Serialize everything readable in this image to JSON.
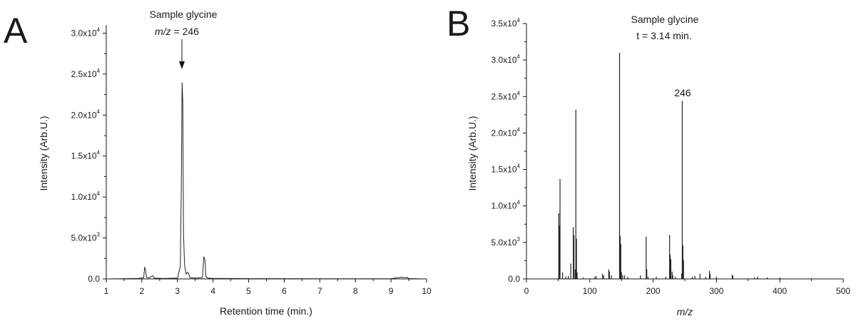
{
  "panels": [
    {
      "letter": "A",
      "title_line1": "Sample glycine",
      "title_line2_italic": "m/z",
      "title_line2_rest": " = 246",
      "ylabel": "Intensity (Arb.U.)",
      "xlabel": "Retention time (min.)",
      "xlabel_italic": false,
      "xticks": [
        1,
        2,
        3,
        4,
        5,
        6,
        7,
        8,
        9,
        10
      ],
      "yticks": [
        {
          "value": 0,
          "mant": "0.0",
          "exp": ""
        },
        {
          "value": 5000,
          "mant": "5.0x10",
          "exp": "3"
        },
        {
          "value": 10000,
          "mant": "1.0x10",
          "exp": "4"
        },
        {
          "value": 15000,
          "mant": "1.5x10",
          "exp": "4"
        },
        {
          "value": 20000,
          "mant": "2.0x10",
          "exp": "4"
        },
        {
          "value": 25000,
          "mant": "2.5x10",
          "exp": "4"
        },
        {
          "value": 30000,
          "mant": "3.0x10",
          "exp": "4"
        }
      ]
    },
    {
      "letter": "B",
      "title_line1": "Sample glycine",
      "title_line2_italic": "",
      "title_line2_rest": "t = 3.14 min.",
      "ylabel": "Intensity (Arb.U.)",
      "xlabel": "m/z",
      "xlabel_italic": true,
      "peak_label": "246",
      "xticks": [
        0,
        100,
        200,
        300,
        400,
        500
      ],
      "yticks": [
        {
          "value": 0,
          "mant": "0.0",
          "exp": ""
        },
        {
          "value": 5000,
          "mant": "5.0x10",
          "exp": "3"
        },
        {
          "value": 10000,
          "mant": "1.0x10",
          "exp": "4"
        },
        {
          "value": 15000,
          "mant": "1.5x10",
          "exp": "4"
        },
        {
          "value": 20000,
          "mant": "2.0x10",
          "exp": "4"
        },
        {
          "value": 25000,
          "mant": "2.5x10",
          "exp": "4"
        },
        {
          "value": 30000,
          "mant": "3.0x10",
          "exp": "4"
        },
        {
          "value": 35000,
          "mant": "3.5x10",
          "exp": "4"
        }
      ]
    }
  ],
  "chart_data": [
    {
      "type": "line",
      "title": "Sample glycine m/z = 246",
      "xlabel": "Retention time (min.)",
      "ylabel": "Intensity (Arb.U.)",
      "xlim": [
        1,
        10
      ],
      "ylim": [
        0,
        31000
      ],
      "grid": false,
      "series": [
        {
          "x": [
            1.0,
            1.9,
            2.05,
            2.08,
            2.1,
            2.13,
            2.2,
            2.3,
            2.32,
            2.35,
            2.6,
            3.0,
            3.08,
            3.11,
            3.13,
            3.15,
            3.17,
            3.2,
            3.24,
            3.28,
            3.31,
            3.35,
            3.5,
            3.7,
            3.74,
            3.77,
            3.8,
            3.85,
            4.0,
            5.0,
            6.0,
            7.0,
            8.0,
            9.0,
            9.3,
            9.4,
            9.45,
            9.5,
            10.0
          ],
          "y": [
            0,
            50,
            150,
            1400,
            1200,
            200,
            100,
            400,
            300,
            100,
            50,
            100,
            1500,
            12000,
            24000,
            21500,
            5500,
            1700,
            600,
            800,
            700,
            150,
            100,
            150,
            2700,
            2400,
            300,
            100,
            60,
            30,
            30,
            20,
            20,
            30,
            200,
            150,
            200,
            40,
            0
          ]
        }
      ],
      "annotations": [
        {
          "text": "Sample glycine m/z = 246",
          "arrow_to_x": 3.13
        }
      ]
    },
    {
      "type": "bar",
      "title": "Sample glycine t = 3.14 min.",
      "xlabel": "m/z",
      "ylabel": "Intensity (Arb.U.)",
      "xlim": [
        0,
        500
      ],
      "ylim": [
        0,
        35000
      ],
      "grid": false,
      "x": [
        51,
        52,
        53,
        57,
        62,
        66,
        70,
        74,
        75,
        77,
        78,
        79,
        80,
        90,
        108,
        110,
        120,
        122,
        130,
        131,
        134,
        147,
        148,
        149,
        150,
        152,
        155,
        160,
        180,
        189,
        190,
        192,
        205,
        220,
        226,
        227,
        228,
        230,
        231,
        235,
        245,
        246,
        247,
        248,
        262,
        266,
        274,
        283,
        289,
        290,
        300,
        325,
        326,
        360,
        365,
        380,
        400
      ],
      "y": [
        9000,
        7300,
        13700,
        900,
        300,
        400,
        2100,
        7100,
        6000,
        1300,
        23200,
        5500,
        900,
        200,
        300,
        400,
        700,
        500,
        1300,
        1000,
        500,
        31000,
        5900,
        4800,
        900,
        500,
        500,
        300,
        500,
        5800,
        1300,
        300,
        300,
        300,
        6000,
        3300,
        2700,
        1000,
        500,
        300,
        700,
        24400,
        4600,
        2600,
        300,
        400,
        700,
        300,
        1100,
        700,
        300,
        600,
        400,
        200,
        300,
        200,
        200
      ],
      "annotations": [
        {
          "text": "246",
          "x": 246
        }
      ]
    }
  ]
}
